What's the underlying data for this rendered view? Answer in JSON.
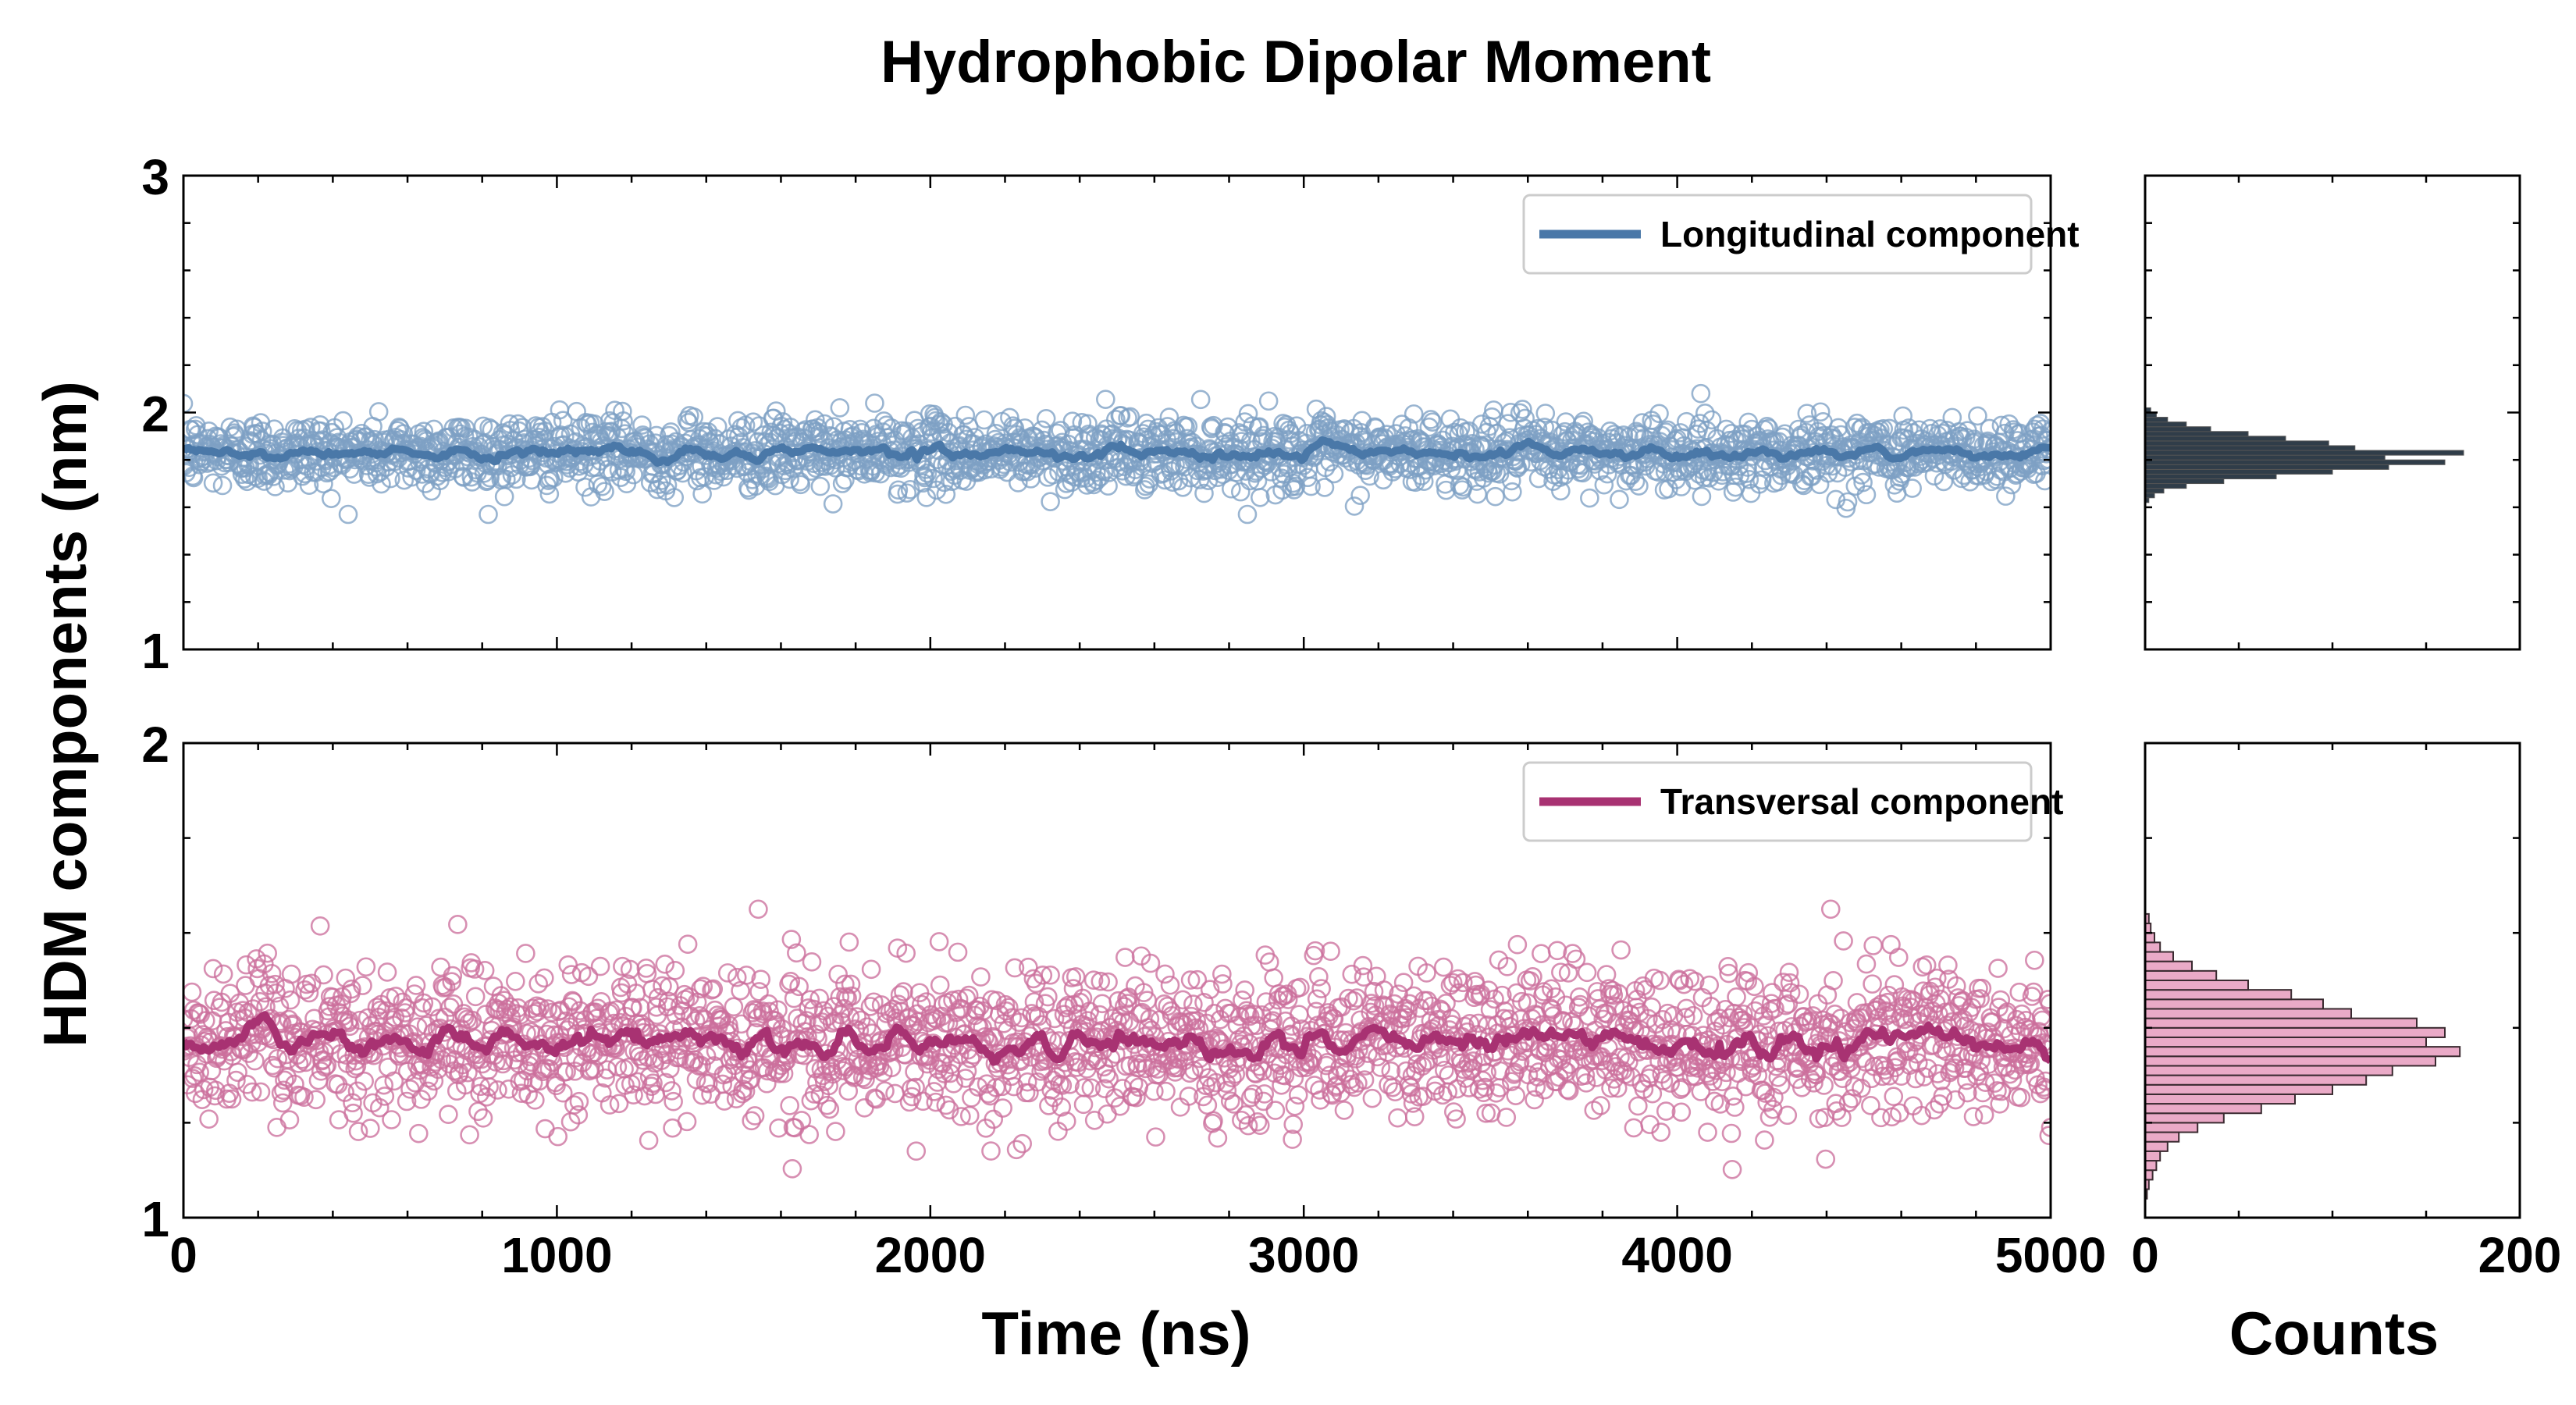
{
  "chart_data": [
    {
      "id": "top-scatter",
      "type": "scatter",
      "title": "Hydrophobic Dipolar Moment",
      "xlim": [
        0,
        5000
      ],
      "ylim": [
        1,
        3
      ],
      "yticks": [
        "1",
        "2",
        "3"
      ],
      "xticks": [],
      "series": [
        {
          "name": "Longitudinal component",
          "color": "#4a78a8",
          "marker_color": "#7da0c4",
          "n_points": 2200,
          "mean": 1.83,
          "std": 0.075,
          "min": 1.57,
          "max": 2.08,
          "running_mean_std": 0.025
        }
      ]
    },
    {
      "id": "bottom-scatter",
      "type": "scatter",
      "xlabel": "Time (ns)",
      "xlim": [
        0,
        5000
      ],
      "ylim": [
        1,
        2
      ],
      "xticks": [
        "0",
        "1000",
        "2000",
        "3000",
        "4000",
        "5000"
      ],
      "yticks": [
        "1",
        "2"
      ],
      "series": [
        {
          "name": "Transversal component",
          "color": "#a83272",
          "marker_color": "#cc6f9c",
          "n_points": 2200,
          "mean": 1.37,
          "std": 0.08,
          "min": 1.04,
          "max": 1.65,
          "running_mean_std": 0.03
        }
      ]
    },
    {
      "id": "top-hist",
      "type": "bar",
      "orientation": "horizontal",
      "xlim": [
        0,
        200
      ],
      "ylim": [
        1,
        3
      ],
      "color": "#1e2d3a",
      "bins": [
        {
          "y0": 1.62,
          "count": 2
        },
        {
          "y0": 1.64,
          "count": 5
        },
        {
          "y0": 1.66,
          "count": 10
        },
        {
          "y0": 1.68,
          "count": 22
        },
        {
          "y0": 1.7,
          "count": 42
        },
        {
          "y0": 1.72,
          "count": 70
        },
        {
          "y0": 1.74,
          "count": 100
        },
        {
          "y0": 1.76,
          "count": 130
        },
        {
          "y0": 1.78,
          "count": 160
        },
        {
          "y0": 1.8,
          "count": 128
        },
        {
          "y0": 1.82,
          "count": 170
        },
        {
          "y0": 1.84,
          "count": 112
        },
        {
          "y0": 1.86,
          "count": 98
        },
        {
          "y0": 1.88,
          "count": 75
        },
        {
          "y0": 1.9,
          "count": 55
        },
        {
          "y0": 1.92,
          "count": 35
        },
        {
          "y0": 1.94,
          "count": 22
        },
        {
          "y0": 1.96,
          "count": 12
        },
        {
          "y0": 1.98,
          "count": 6
        },
        {
          "y0": 2.0,
          "count": 3
        }
      ]
    },
    {
      "id": "bottom-hist",
      "type": "bar",
      "orientation": "horizontal",
      "xlabel": "Counts",
      "xlim": [
        0,
        200
      ],
      "ylim": [
        1,
        2
      ],
      "xticks": [
        "0",
        "200"
      ],
      "color": "#e8a3c2",
      "edge": "#3a2a30",
      "bins": [
        {
          "y0": 1.04,
          "count": 1
        },
        {
          "y0": 1.06,
          "count": 2
        },
        {
          "y0": 1.08,
          "count": 4
        },
        {
          "y0": 1.1,
          "count": 6
        },
        {
          "y0": 1.12,
          "count": 8
        },
        {
          "y0": 1.14,
          "count": 12
        },
        {
          "y0": 1.16,
          "count": 18
        },
        {
          "y0": 1.18,
          "count": 28
        },
        {
          "y0": 1.2,
          "count": 42
        },
        {
          "y0": 1.22,
          "count": 62
        },
        {
          "y0": 1.24,
          "count": 80
        },
        {
          "y0": 1.26,
          "count": 100
        },
        {
          "y0": 1.28,
          "count": 118
        },
        {
          "y0": 1.3,
          "count": 132
        },
        {
          "y0": 1.32,
          "count": 155
        },
        {
          "y0": 1.34,
          "count": 168
        },
        {
          "y0": 1.36,
          "count": 150
        },
        {
          "y0": 1.38,
          "count": 160
        },
        {
          "y0": 1.4,
          "count": 145
        },
        {
          "y0": 1.42,
          "count": 110
        },
        {
          "y0": 1.44,
          "count": 95
        },
        {
          "y0": 1.46,
          "count": 78
        },
        {
          "y0": 1.48,
          "count": 55
        },
        {
          "y0": 1.5,
          "count": 38
        },
        {
          "y0": 1.52,
          "count": 25
        },
        {
          "y0": 1.54,
          "count": 15
        },
        {
          "y0": 1.56,
          "count": 8
        },
        {
          "y0": 1.58,
          "count": 5
        },
        {
          "y0": 1.6,
          "count": 3
        },
        {
          "y0": 1.62,
          "count": 2
        }
      ]
    }
  ],
  "figure": {
    "title": "Hydrophobic Dipolar Moment",
    "ylabel": "HDM components (nm)",
    "xlabel_main": "Time (ns)",
    "xlabel_hist": "Counts"
  }
}
